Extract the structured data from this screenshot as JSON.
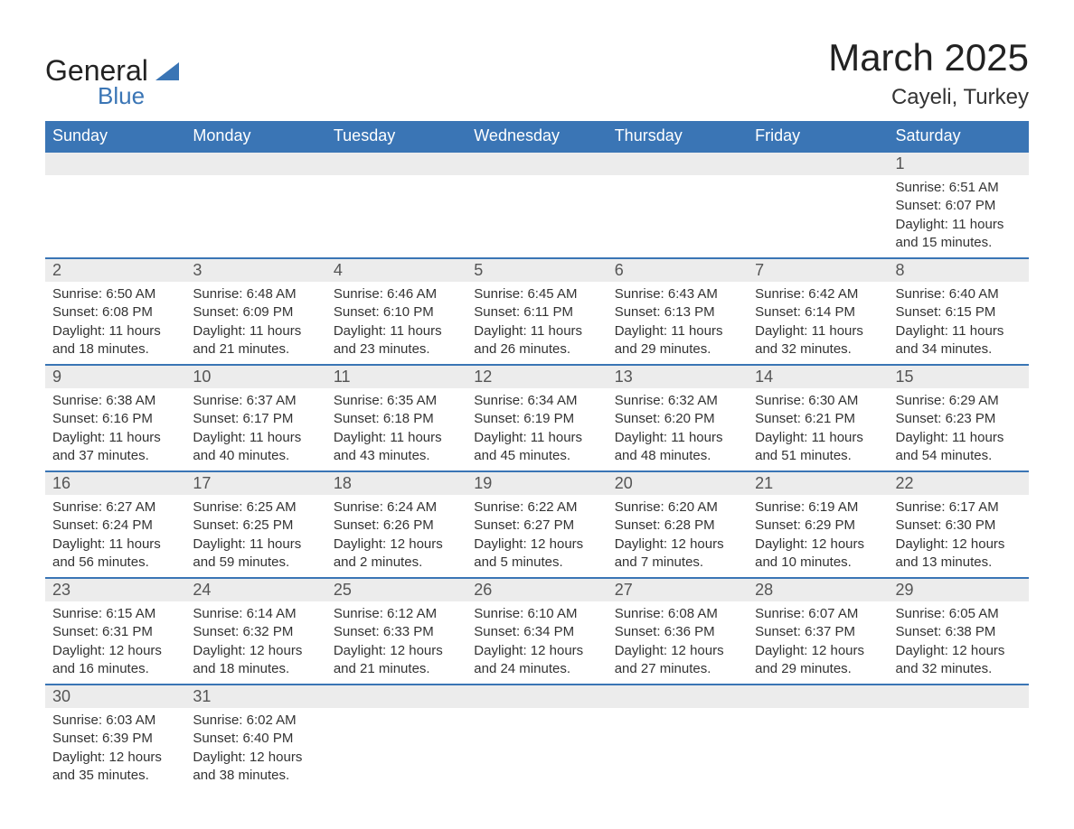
{
  "logo": {
    "text1": "General",
    "text2": "Blue"
  },
  "title": "March 2025",
  "location": "Cayeli, Turkey",
  "colors": {
    "header_bg": "#3a75b5",
    "header_text": "#ffffff",
    "daynum_bg": "#ececec",
    "border_accent": "#3a75b5",
    "body_text": "#333333",
    "logo_blue": "#3a75b5"
  },
  "day_headers": [
    "Sunday",
    "Monday",
    "Tuesday",
    "Wednesday",
    "Thursday",
    "Friday",
    "Saturday"
  ],
  "weeks": [
    [
      null,
      null,
      null,
      null,
      null,
      null,
      {
        "n": "1",
        "sr": "Sunrise: 6:51 AM",
        "ss": "Sunset: 6:07 PM",
        "dl": "Daylight: 11 hours and 15 minutes."
      }
    ],
    [
      {
        "n": "2",
        "sr": "Sunrise: 6:50 AM",
        "ss": "Sunset: 6:08 PM",
        "dl": "Daylight: 11 hours and 18 minutes."
      },
      {
        "n": "3",
        "sr": "Sunrise: 6:48 AM",
        "ss": "Sunset: 6:09 PM",
        "dl": "Daylight: 11 hours and 21 minutes."
      },
      {
        "n": "4",
        "sr": "Sunrise: 6:46 AM",
        "ss": "Sunset: 6:10 PM",
        "dl": "Daylight: 11 hours and 23 minutes."
      },
      {
        "n": "5",
        "sr": "Sunrise: 6:45 AM",
        "ss": "Sunset: 6:11 PM",
        "dl": "Daylight: 11 hours and 26 minutes."
      },
      {
        "n": "6",
        "sr": "Sunrise: 6:43 AM",
        "ss": "Sunset: 6:13 PM",
        "dl": "Daylight: 11 hours and 29 minutes."
      },
      {
        "n": "7",
        "sr": "Sunrise: 6:42 AM",
        "ss": "Sunset: 6:14 PM",
        "dl": "Daylight: 11 hours and 32 minutes."
      },
      {
        "n": "8",
        "sr": "Sunrise: 6:40 AM",
        "ss": "Sunset: 6:15 PM",
        "dl": "Daylight: 11 hours and 34 minutes."
      }
    ],
    [
      {
        "n": "9",
        "sr": "Sunrise: 6:38 AM",
        "ss": "Sunset: 6:16 PM",
        "dl": "Daylight: 11 hours and 37 minutes."
      },
      {
        "n": "10",
        "sr": "Sunrise: 6:37 AM",
        "ss": "Sunset: 6:17 PM",
        "dl": "Daylight: 11 hours and 40 minutes."
      },
      {
        "n": "11",
        "sr": "Sunrise: 6:35 AM",
        "ss": "Sunset: 6:18 PM",
        "dl": "Daylight: 11 hours and 43 minutes."
      },
      {
        "n": "12",
        "sr": "Sunrise: 6:34 AM",
        "ss": "Sunset: 6:19 PM",
        "dl": "Daylight: 11 hours and 45 minutes."
      },
      {
        "n": "13",
        "sr": "Sunrise: 6:32 AM",
        "ss": "Sunset: 6:20 PM",
        "dl": "Daylight: 11 hours and 48 minutes."
      },
      {
        "n": "14",
        "sr": "Sunrise: 6:30 AM",
        "ss": "Sunset: 6:21 PM",
        "dl": "Daylight: 11 hours and 51 minutes."
      },
      {
        "n": "15",
        "sr": "Sunrise: 6:29 AM",
        "ss": "Sunset: 6:23 PM",
        "dl": "Daylight: 11 hours and 54 minutes."
      }
    ],
    [
      {
        "n": "16",
        "sr": "Sunrise: 6:27 AM",
        "ss": "Sunset: 6:24 PM",
        "dl": "Daylight: 11 hours and 56 minutes."
      },
      {
        "n": "17",
        "sr": "Sunrise: 6:25 AM",
        "ss": "Sunset: 6:25 PM",
        "dl": "Daylight: 11 hours and 59 minutes."
      },
      {
        "n": "18",
        "sr": "Sunrise: 6:24 AM",
        "ss": "Sunset: 6:26 PM",
        "dl": "Daylight: 12 hours and 2 minutes."
      },
      {
        "n": "19",
        "sr": "Sunrise: 6:22 AM",
        "ss": "Sunset: 6:27 PM",
        "dl": "Daylight: 12 hours and 5 minutes."
      },
      {
        "n": "20",
        "sr": "Sunrise: 6:20 AM",
        "ss": "Sunset: 6:28 PM",
        "dl": "Daylight: 12 hours and 7 minutes."
      },
      {
        "n": "21",
        "sr": "Sunrise: 6:19 AM",
        "ss": "Sunset: 6:29 PM",
        "dl": "Daylight: 12 hours and 10 minutes."
      },
      {
        "n": "22",
        "sr": "Sunrise: 6:17 AM",
        "ss": "Sunset: 6:30 PM",
        "dl": "Daylight: 12 hours and 13 minutes."
      }
    ],
    [
      {
        "n": "23",
        "sr": "Sunrise: 6:15 AM",
        "ss": "Sunset: 6:31 PM",
        "dl": "Daylight: 12 hours and 16 minutes."
      },
      {
        "n": "24",
        "sr": "Sunrise: 6:14 AM",
        "ss": "Sunset: 6:32 PM",
        "dl": "Daylight: 12 hours and 18 minutes."
      },
      {
        "n": "25",
        "sr": "Sunrise: 6:12 AM",
        "ss": "Sunset: 6:33 PM",
        "dl": "Daylight: 12 hours and 21 minutes."
      },
      {
        "n": "26",
        "sr": "Sunrise: 6:10 AM",
        "ss": "Sunset: 6:34 PM",
        "dl": "Daylight: 12 hours and 24 minutes."
      },
      {
        "n": "27",
        "sr": "Sunrise: 6:08 AM",
        "ss": "Sunset: 6:36 PM",
        "dl": "Daylight: 12 hours and 27 minutes."
      },
      {
        "n": "28",
        "sr": "Sunrise: 6:07 AM",
        "ss": "Sunset: 6:37 PM",
        "dl": "Daylight: 12 hours and 29 minutes."
      },
      {
        "n": "29",
        "sr": "Sunrise: 6:05 AM",
        "ss": "Sunset: 6:38 PM",
        "dl": "Daylight: 12 hours and 32 minutes."
      }
    ],
    [
      {
        "n": "30",
        "sr": "Sunrise: 6:03 AM",
        "ss": "Sunset: 6:39 PM",
        "dl": "Daylight: 12 hours and 35 minutes."
      },
      {
        "n": "31",
        "sr": "Sunrise: 6:02 AM",
        "ss": "Sunset: 6:40 PM",
        "dl": "Daylight: 12 hours and 38 minutes."
      },
      null,
      null,
      null,
      null,
      null
    ]
  ]
}
